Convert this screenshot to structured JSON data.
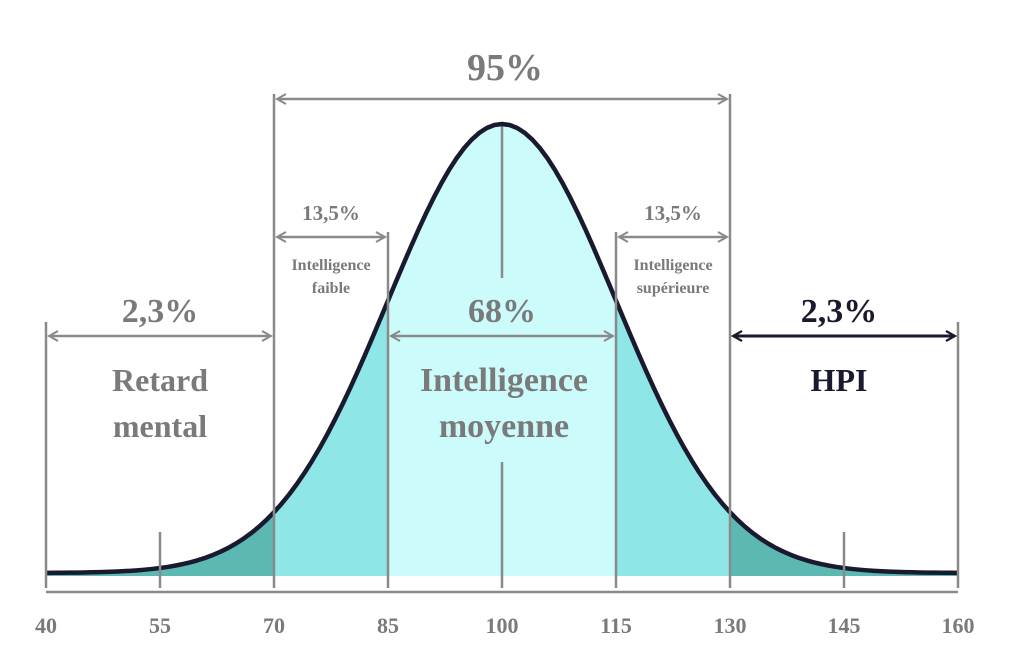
{
  "chart_data": {
    "type": "area",
    "title": "",
    "xlabel": "",
    "ylabel": "",
    "distribution": {
      "kind": "normal",
      "mean": 100,
      "sd": 15
    },
    "xlim": [
      40,
      160
    ],
    "x_ticks": [
      40,
      55,
      70,
      85,
      100,
      115,
      130,
      145,
      160
    ],
    "x_tick_labels": [
      "40",
      "55",
      "70",
      "85",
      "100",
      "115",
      "130",
      "145",
      "160"
    ],
    "regions": [
      {
        "from": 40,
        "to": 70,
        "percent": "2,3%",
        "label_lines": [
          "Retard",
          "mental"
        ],
        "fill": "#5bb8b2",
        "label_color": "#7a7a7a"
      },
      {
        "from": 70,
        "to": 85,
        "percent": "13,5%",
        "label_lines": [
          "Intelligence",
          "faible"
        ],
        "fill": "#8fe6e6",
        "label_color": "#7a7a7a"
      },
      {
        "from": 85,
        "to": 115,
        "percent": "68%",
        "label_lines": [
          "Intelligence",
          "moyenne"
        ],
        "fill": "#ccfbfb",
        "label_color": "#7a7a7a"
      },
      {
        "from": 115,
        "to": 130,
        "percent": "13,5%",
        "label_lines": [
          "Intelligence",
          "supérieure"
        ],
        "fill": "#8fe6e6",
        "label_color": "#7a7a7a"
      },
      {
        "from": 130,
        "to": 160,
        "percent": "2,3%",
        "label_lines": [
          "HPI"
        ],
        "fill": "#5bb8b2",
        "label_color": "#1a1a2e"
      }
    ],
    "span_95": {
      "from": 70,
      "to": 130,
      "percent": "95%"
    },
    "colors": {
      "curve": "#1a1a2e",
      "lines": "#8a8a8a",
      "text": "#7a7a7a",
      "highlight": "#1a1a2e"
    }
  }
}
